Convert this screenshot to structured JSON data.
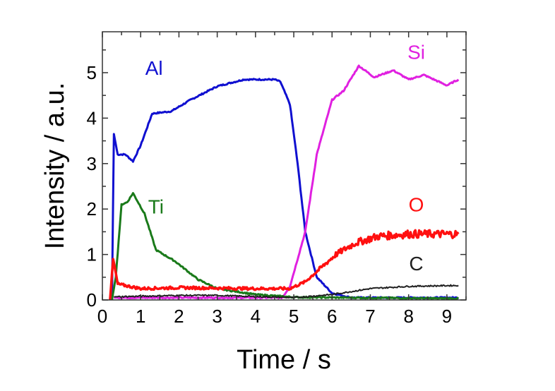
{
  "chart_data": {
    "type": "line",
    "title": "",
    "xlabel": "Time / s",
    "ylabel": "Intensity / a.u.",
    "xlim": [
      0,
      9.5
    ],
    "ylim": [
      0,
      5.9
    ],
    "xticks": [
      "0",
      "1",
      "2",
      "3",
      "4",
      "5",
      "6",
      "7",
      "8",
      "9"
    ],
    "yticks": [
      "0",
      "1",
      "2",
      "3",
      "4",
      "5"
    ],
    "grid": false,
    "series": [
      {
        "name": "Al",
        "color": "#1010d0",
        "label_pos": [
          1.35,
          4.95
        ],
        "x": [
          0.25,
          0.3,
          0.4,
          0.6,
          0.8,
          1.0,
          1.3,
          1.8,
          2.3,
          3.0,
          3.7,
          4.5,
          4.65,
          4.9,
          5.1,
          5.3,
          5.6,
          6.0,
          6.5,
          9.3
        ],
        "y": [
          0,
          3.65,
          3.2,
          3.2,
          3.05,
          3.4,
          4.1,
          4.15,
          4.4,
          4.7,
          4.85,
          4.85,
          4.8,
          4.3,
          3.0,
          1.5,
          0.5,
          0.15,
          0.05,
          0.05
        ]
      },
      {
        "name": "Si",
        "color": "#e020e0",
        "label_pos": [
          8.2,
          5.3
        ],
        "x": [
          0.3,
          4.7,
          4.9,
          5.3,
          5.6,
          6.0,
          6.3,
          6.7,
          7.1,
          7.6,
          8.0,
          8.4,
          9.0,
          9.3
        ],
        "y": [
          0.05,
          0.05,
          0.3,
          1.5,
          3.2,
          4.4,
          4.6,
          5.15,
          4.9,
          5.05,
          4.85,
          4.95,
          4.72,
          4.85
        ]
      },
      {
        "name": "Ti",
        "color": "#1a7a1a",
        "label_pos": [
          1.4,
          1.9
        ],
        "x": [
          0.25,
          0.35,
          0.5,
          0.65,
          0.8,
          1.1,
          1.4,
          1.9,
          2.5,
          3.0,
          4.0,
          5.0,
          9.3
        ],
        "y": [
          0,
          0.5,
          2.1,
          2.15,
          2.35,
          1.9,
          1.1,
          0.85,
          0.45,
          0.25,
          0.12,
          0.06,
          0.03
        ]
      },
      {
        "name": "O",
        "color": "#ff1010",
        "label_pos": [
          8.2,
          1.95
        ],
        "x": [
          0.2,
          0.28,
          0.4,
          1.0,
          2.0,
          4.0,
          4.9,
          5.3,
          5.7,
          6.1,
          6.6,
          7.2,
          8.0,
          9.3
        ],
        "y": [
          0,
          0.9,
          0.35,
          0.25,
          0.27,
          0.25,
          0.25,
          0.4,
          0.7,
          1.0,
          1.25,
          1.4,
          1.45,
          1.45
        ]
      },
      {
        "name": "C",
        "color": "#202020",
        "label_pos": [
          8.2,
          0.65
        ],
        "x": [
          0.3,
          2.0,
          3.0,
          5.0,
          6.0,
          7.0,
          8.0,
          9.3
        ],
        "y": [
          0.07,
          0.1,
          0.1,
          0.05,
          0.12,
          0.25,
          0.3,
          0.32
        ]
      }
    ]
  }
}
